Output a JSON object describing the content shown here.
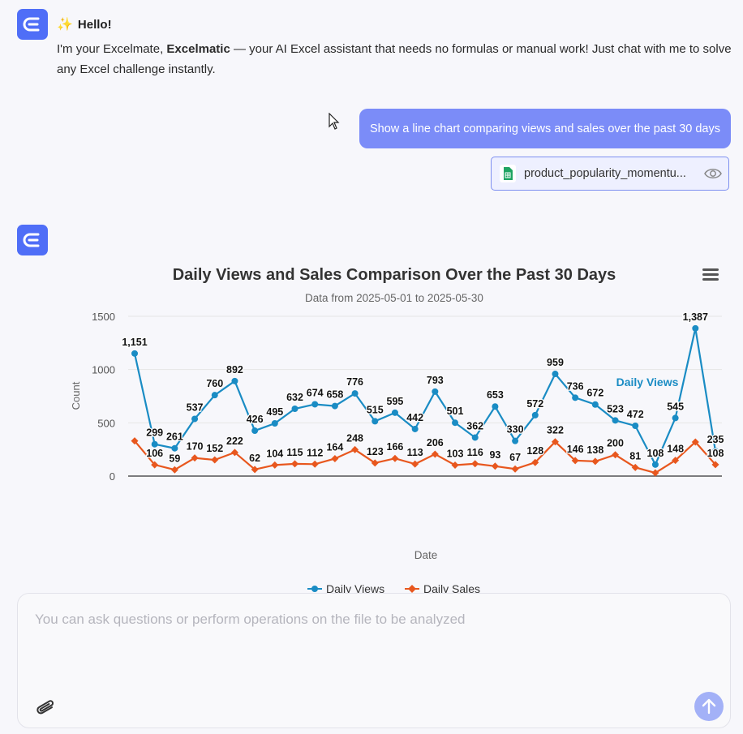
{
  "greeting": {
    "title": "Hello!",
    "body_pre": "I'm your Excelmate, ",
    "brand": "Excelmatic",
    "body_post": " — your AI Excel assistant that needs no formulas or manual work! Just chat with me to solve any Excel challenge instantly."
  },
  "user_message": "Show a line chart comparing views and sales over the past 30 days",
  "attachment": {
    "name": "product_popularity_momentu...",
    "icon": "spreadsheet-icon"
  },
  "colors": {
    "views": "#1a8cc4",
    "sales": "#e8571e",
    "accent": "#4f6ef7"
  },
  "chart_data": {
    "type": "line",
    "title": "Daily Views and Sales Comparison Over the Past 30 Days",
    "subtitle": "Data from 2025-05-01 to 2025-05-30",
    "xlabel": "Date",
    "ylabel": "Count",
    "ylim": [
      0,
      1500
    ],
    "yticks": [
      "0",
      "500",
      "1000",
      "1500"
    ],
    "grid": true,
    "legend_position": "bottom",
    "inline_label": "Daily Views",
    "series": [
      {
        "name": "Daily Views",
        "marker": "circle",
        "values": [
          1151,
          299,
          261,
          537,
          760,
          892,
          426,
          495,
          632,
          674,
          658,
          776,
          515,
          595,
          442,
          793,
          501,
          362,
          653,
          330,
          572,
          959,
          736,
          672,
          523,
          472,
          108,
          545,
          1387,
          235
        ],
        "labels": [
          "1,151",
          "299",
          "261",
          "537",
          "760",
          "892",
          "426",
          "495",
          "632",
          "674",
          "658",
          "776",
          "515",
          "595",
          "442",
          "793",
          "501",
          "362",
          "653",
          "330",
          "572",
          "959",
          "736",
          "672",
          "523",
          "472",
          "108",
          "545",
          "1,387",
          "235"
        ]
      },
      {
        "name": "Daily Sales",
        "marker": "diamond",
        "values": [
          330,
          106,
          59,
          170,
          152,
          222,
          62,
          104,
          115,
          112,
          164,
          248,
          123,
          166,
          113,
          206,
          103,
          116,
          93,
          67,
          128,
          322,
          146,
          138,
          200,
          81,
          30,
          148,
          320,
          108
        ],
        "labels": [
          "",
          "106",
          "59",
          "170",
          "152",
          "222",
          "62",
          "104",
          "115",
          "112",
          "164",
          "248",
          "123",
          "166",
          "113",
          "206",
          "103",
          "116",
          "93",
          "67",
          "128",
          "322",
          "146",
          "138",
          "200",
          "81",
          "",
          "148",
          "",
          "108"
        ]
      }
    ]
  },
  "input": {
    "placeholder": "You can ask questions or perform operations on the file to be analyzed",
    "value": ""
  }
}
